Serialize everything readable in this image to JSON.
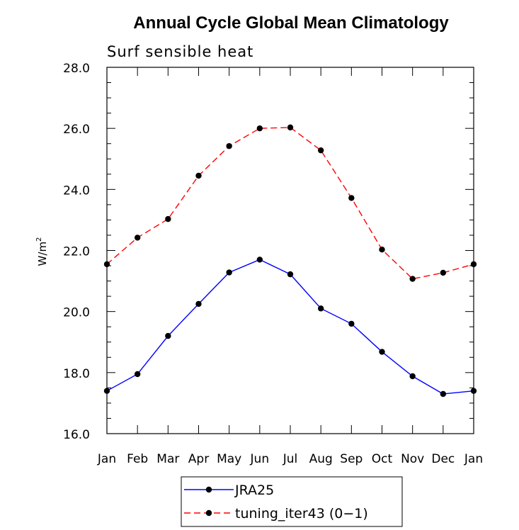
{
  "chart_data": {
    "type": "line",
    "title": "Annual Cycle Global Mean Climatology",
    "subtitle": "Surf sensible heat",
    "ylabel": "W/m",
    "ylabel_sup": "2",
    "xlabel": "",
    "categories": [
      "Jan",
      "Feb",
      "Mar",
      "Apr",
      "May",
      "Jun",
      "Jul",
      "Aug",
      "Sep",
      "Oct",
      "Nov",
      "Dec",
      "Jan"
    ],
    "ylim": [
      16.0,
      28.0
    ],
    "yticks": [
      "16.0",
      "18.0",
      "20.0",
      "22.0",
      "24.0",
      "26.0",
      "28.0"
    ],
    "grid": false,
    "legend_position": "bottom",
    "series": [
      {
        "name": "JRA25",
        "color": "#0000ff",
        "style": "solid",
        "values": [
          17.4,
          17.95,
          19.2,
          20.25,
          21.28,
          21.7,
          21.22,
          20.1,
          19.6,
          18.68,
          17.88,
          17.3,
          17.4
        ]
      },
      {
        "name": "tuning_iter43 (0−1)",
        "color": "#ff0000",
        "style": "dashed",
        "values": [
          21.55,
          22.42,
          23.03,
          24.45,
          25.42,
          26.0,
          26.03,
          25.28,
          23.72,
          22.03,
          21.07,
          21.27,
          21.55
        ]
      }
    ]
  }
}
